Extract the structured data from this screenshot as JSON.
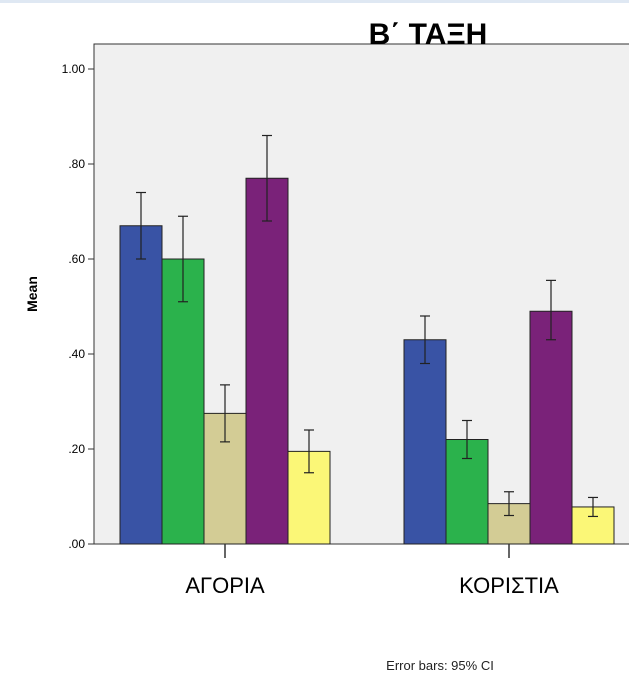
{
  "chart_data": {
    "type": "bar",
    "title": "Β΄ ΤΑΞΗ",
    "ylabel": "Mean",
    "xlabel": "",
    "ylim": [
      0,
      1.0
    ],
    "yticks": [
      ".00",
      ".20",
      ".40",
      ".60",
      ".80",
      "1.00"
    ],
    "ytick_values": [
      0,
      0.2,
      0.4,
      0.6,
      0.8,
      1.0
    ],
    "categories": [
      "ΑΓΟΡΙΑ",
      "ΚΟΡΙΣΤΙΑ"
    ],
    "grid": false,
    "series": [
      {
        "color": "#3953a5",
        "values": [
          0.67,
          0.43
        ],
        "ci_low": [
          0.6,
          0.38
        ],
        "ci_high": [
          0.74,
          0.48
        ]
      },
      {
        "color": "#2bb24c",
        "values": [
          0.6,
          0.22
        ],
        "ci_low": [
          0.51,
          0.18
        ],
        "ci_high": [
          0.69,
          0.26
        ]
      },
      {
        "color": "#d3cc95",
        "values": [
          0.275,
          0.085
        ],
        "ci_low": [
          0.215,
          0.06
        ],
        "ci_high": [
          0.335,
          0.11
        ]
      },
      {
        "color": "#7a2279",
        "values": [
          0.77,
          0.49
        ],
        "ci_low": [
          0.68,
          0.43
        ],
        "ci_high": [
          0.86,
          0.555
        ]
      },
      {
        "color": "#fbf777",
        "values": [
          0.195,
          0.078
        ],
        "ci_low": [
          0.15,
          0.058
        ],
        "ci_high": [
          0.24,
          0.098
        ]
      }
    ],
    "footnote": "Error bars: 95% CI"
  }
}
